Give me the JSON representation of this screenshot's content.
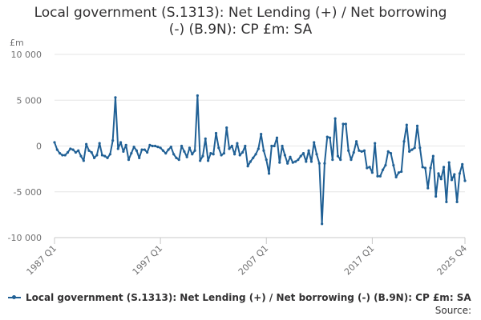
{
  "chart_data": {
    "type": "line",
    "title": "Local government (S.1313): Net Lending (+) / Net borrowing (-) (B.9N): CP £m: SA",
    "ylabel": "£m",
    "ylim": [
      -10000,
      10000
    ],
    "yticks": [
      {
        "value": 10000,
        "label": "10 000"
      },
      {
        "value": 5000,
        "label": "5 000"
      },
      {
        "value": 0,
        "label": "0"
      },
      {
        "value": -5000,
        "label": "-5 000"
      },
      {
        "value": -10000,
        "label": "-10 000"
      }
    ],
    "xticks": [
      {
        "value": "1987 Q1",
        "index": 0
      },
      {
        "value": "1997 Q1",
        "index": 40
      },
      {
        "value": "2007 Q1",
        "index": 80
      },
      {
        "value": "2017 Q1",
        "index": 120
      },
      {
        "value": "2025 Q4",
        "index": 155
      }
    ],
    "grid": "horizontal",
    "legend_position": "bottom",
    "x_start": "1987 Q1",
    "x_end": "2025 Q4",
    "series": [
      {
        "name": "Local government (S.1313): Net Lending (+) / Net borrowing (-) (B.9N): CP £m: SA",
        "color": "#206095",
        "values": [
          400,
          -400,
          -800,
          -1000,
          -1000,
          -700,
          -300,
          -400,
          -700,
          -500,
          -1100,
          -1600,
          200,
          -500,
          -700,
          -1300,
          -1000,
          300,
          -1000,
          -1100,
          -1300,
          -900,
          600,
          5300,
          -300,
          400,
          -600,
          100,
          -1500,
          -800,
          -100,
          -500,
          -1300,
          -400,
          -400,
          -700,
          100,
          0,
          0,
          -100,
          -200,
          -500,
          -800,
          -400,
          -100,
          -900,
          -1300,
          -1500,
          0,
          -600,
          -1200,
          -200,
          -900,
          -500,
          5500,
          -1600,
          -1100,
          800,
          -1600,
          -800,
          -900,
          1400,
          -200,
          -1000,
          -800,
          2000,
          -300,
          0,
          -900,
          300,
          -1000,
          -700,
          0,
          -2200,
          -1700,
          -1300,
          -900,
          -300,
          1300,
          -500,
          -1500,
          -3000,
          0,
          0,
          900,
          -1800,
          0,
          -1000,
          -1900,
          -1200,
          -1800,
          -1700,
          -1500,
          -1100,
          -800,
          -1700,
          -500,
          -1700,
          400,
          -900,
          -1900,
          -8500,
          -1900,
          1000,
          900,
          -1500,
          3000,
          -1100,
          -1500,
          2400,
          2400,
          -500,
          -1500,
          -700,
          500,
          -500,
          -600,
          -500,
          -2400,
          -2300,
          -2900,
          300,
          -3300,
          -3300,
          -2600,
          -2100,
          -600,
          -800,
          -2100,
          -3400,
          -2900,
          -2800,
          500,
          2300,
          -600,
          -400,
          -200,
          2200,
          -200,
          -2300,
          -2400,
          -4600,
          -2400,
          -1100,
          -5500,
          -3000,
          -3600,
          -2300,
          -6100,
          -1800,
          -3700,
          -3100,
          -6100,
          -3000,
          -2000,
          -3800
        ]
      }
    ]
  },
  "legend": {
    "label": "Local government (S.1313): Net Lending (+) / Net borrowing (-) (B.9N): CP £m: SA"
  },
  "footer": {
    "source_label": "Source:"
  }
}
